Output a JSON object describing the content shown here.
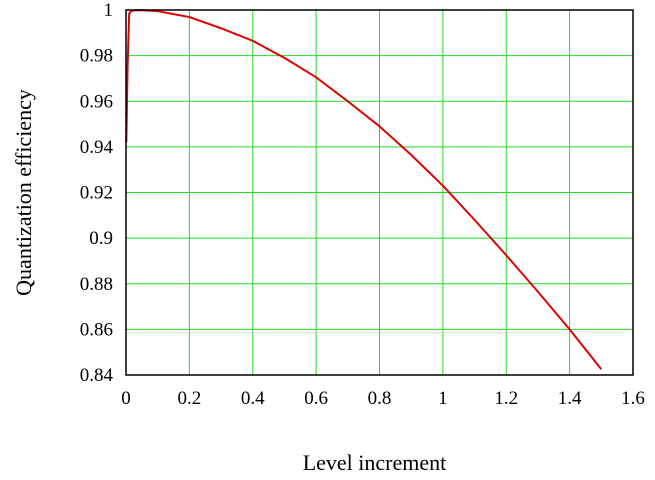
{
  "chart_data": {
    "type": "line",
    "title": "",
    "xlabel": "Level increment",
    "ylabel": "Quantization efficiency",
    "xlim": [
      0,
      1.6
    ],
    "ylim": [
      0.84,
      1
    ],
    "grid": true,
    "legend": "none",
    "x_ticks": [
      {
        "value": 0,
        "label": "0"
      },
      {
        "value": 0.2,
        "label": "0.2"
      },
      {
        "value": 0.4,
        "label": "0.4"
      },
      {
        "value": 0.6,
        "label": "0.6"
      },
      {
        "value": 0.8,
        "label": "0.8"
      },
      {
        "value": 1.0,
        "label": "1"
      },
      {
        "value": 1.2,
        "label": "1.2"
      },
      {
        "value": 1.4,
        "label": "1.4"
      },
      {
        "value": 1.6,
        "label": "1.6"
      }
    ],
    "y_ticks": [
      {
        "value": 0.84,
        "label": "0.84"
      },
      {
        "value": 0.86,
        "label": "0.86"
      },
      {
        "value": 0.88,
        "label": "0.88"
      },
      {
        "value": 0.9,
        "label": "0.9"
      },
      {
        "value": 0.92,
        "label": "0.92"
      },
      {
        "value": 0.94,
        "label": "0.94"
      },
      {
        "value": 0.96,
        "label": "0.96"
      },
      {
        "value": 0.98,
        "label": "0.98"
      },
      {
        "value": 1.0,
        "label": "1"
      }
    ],
    "series": [
      {
        "color": "#e00000",
        "x": [
          0.001,
          0.005,
          0.01,
          0.02,
          0.05,
          0.1,
          0.2,
          0.3,
          0.4,
          0.5,
          0.6,
          0.7,
          0.8,
          0.9,
          1.0,
          1.1,
          1.2,
          1.3,
          1.4,
          1.5
        ],
        "y": [
          0.942,
          0.975,
          0.9985,
          0.9998,
          0.99995,
          0.9995,
          0.9969,
          0.992,
          0.9865,
          0.979,
          0.9705,
          0.96,
          0.949,
          0.9365,
          0.923,
          0.908,
          0.8925,
          0.8765,
          0.86,
          0.8425
        ]
      }
    ],
    "colors": {
      "grid": "#22dd22",
      "axes": "#000000",
      "line": "#e00000"
    }
  }
}
